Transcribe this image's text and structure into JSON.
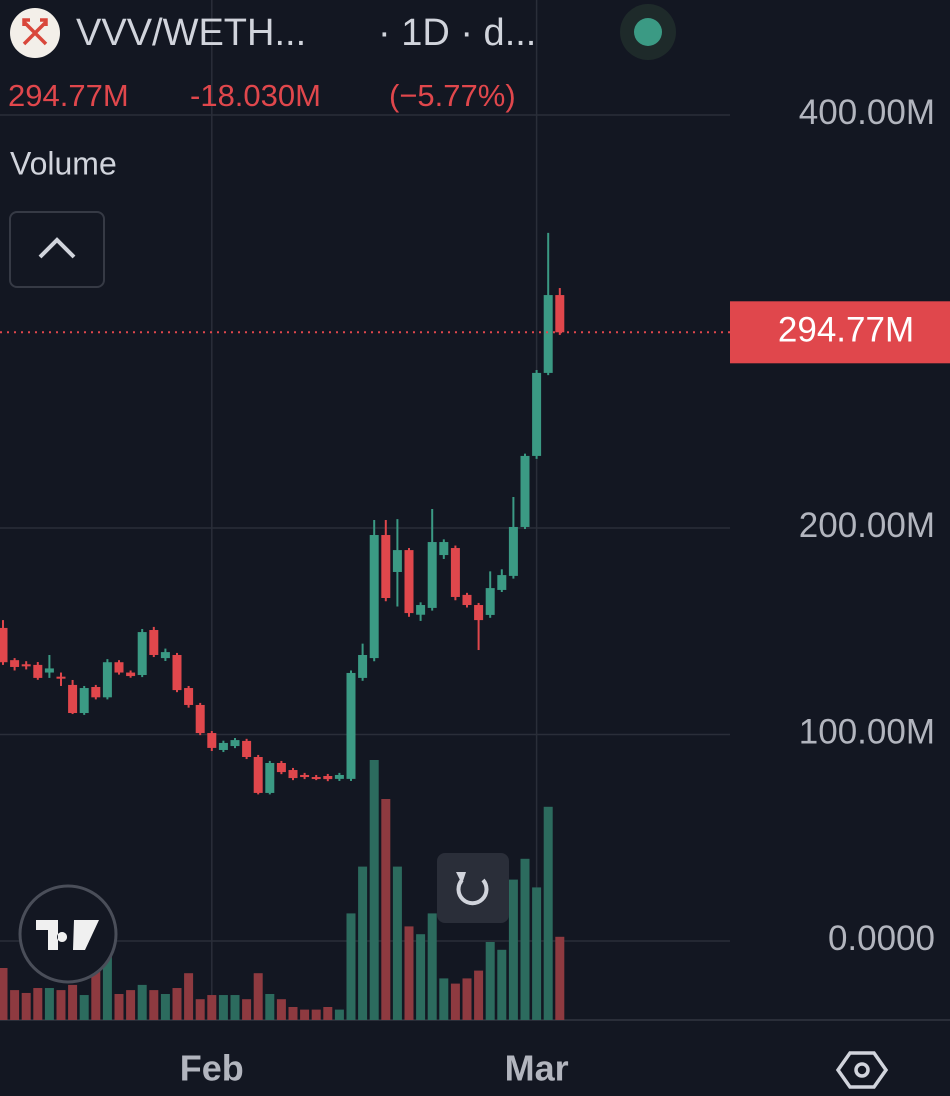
{
  "chart_data": {
    "type": "candlestick",
    "title": "VVV/WETH...",
    "subtitle": "· 1D · d...",
    "last_price_label": "294.77M",
    "change_label": "-18.030M",
    "change_pct_label": "(−5.77%)",
    "volume_label": "Volume",
    "last_price": 294.77,
    "categories": [
      null,
      null,
      null,
      null,
      null,
      null,
      null,
      null,
      null,
      null,
      null,
      null,
      null,
      null,
      null,
      null,
      null,
      null,
      "Feb",
      null,
      null,
      null,
      null,
      null,
      null,
      null,
      null,
      null,
      null,
      null,
      null,
      null,
      null,
      null,
      null,
      null,
      null,
      null,
      null,
      null,
      null,
      null,
      null,
      null,
      null,
      null,
      "Mar",
      null,
      null
    ],
    "open": [
      151.6,
      136,
      134,
      133.7,
      130,
      128,
      124,
      110.4,
      123,
      118,
      135,
      130,
      128.8,
      150.6,
      137,
      138.5,
      122.5,
      114.3,
      100.7,
      92.5,
      94.4,
      96.9,
      89.1,
      71.7,
      86.2,
      82.8,
      80.4,
      79.4,
      79.9,
      78.5,
      78.5,
      127.4,
      137,
      196.6,
      178.7,
      189.3,
      158,
      161.3,
      186.9,
      190.3,
      167.6,
      162.7,
      157.9,
      170,
      176.8,
      200.5,
      234.9,
      275.1,
      312.8
    ],
    "high": [
      155.4,
      137,
      135.5,
      135.1,
      138.5,
      130,
      126.4,
      123.5,
      124,
      136.5,
      136,
      131,
      151.1,
      152.1,
      141.6,
      139.5,
      123.5,
      115.3,
      101.7,
      97,
      98.3,
      97.9,
      90.1,
      87.2,
      87.2,
      83.8,
      81.4,
      80.4,
      80.9,
      81.4,
      131,
      144,
      203.9,
      203.9,
      204.3,
      190.3,
      164,
      209.2,
      194.5,
      191.5,
      168.6,
      163.7,
      179,
      180,
      215,
      236,
      276.5,
      342.9,
      316.2
    ],
    "low": [
      133.7,
      131,
      131.5,
      126.5,
      127.4,
      123.5,
      109.9,
      109.5,
      117,
      117,
      129,
      127.5,
      127.8,
      137.5,
      135.6,
      120.5,
      113,
      99.7,
      92,
      91.5,
      93.4,
      88.1,
      71,
      71,
      80.8,
      77.9,
      78.4,
      77.9,
      77.4,
      77.5,
      77.5,
      126,
      135.5,
      164.5,
      162,
      157,
      155,
      160,
      185,
      165,
      161.5,
      140.9,
      156.5,
      169,
      175.5,
      199.5,
      233.5,
      274,
      293.5
    ],
    "close": [
      135,
      132.7,
      133,
      127.4,
      132,
      127.5,
      110.4,
      122.5,
      118,
      135,
      130,
      128.3,
      149.6,
      138.5,
      139.9,
      121.5,
      114.3,
      100.7,
      93.5,
      95.9,
      97.3,
      89.1,
      71.7,
      86.2,
      81.8,
      78.9,
      79.4,
      78.9,
      78.4,
      80.4,
      129.8,
      138.5,
      196.6,
      166.1,
      189.3,
      158.8,
      162.7,
      193.2,
      193.2,
      166.6,
      162.7,
      155.4,
      170.9,
      177.2,
      200.5,
      234.9,
      275.1,
      312.8,
      294.77
    ],
    "volume": [
      20,
      11.5,
      10.4,
      12.3,
      12.3,
      11.5,
      13.5,
      9.6,
      21,
      28.8,
      10,
      11.5,
      13.5,
      11.5,
      10,
      12.3,
      18,
      8,
      9.6,
      9.6,
      9.6,
      8,
      18,
      10,
      8,
      5,
      4,
      4,
      5,
      4,
      41,
      59,
      100,
      85,
      59,
      36,
      33,
      41,
      16,
      14,
      16,
      19,
      30,
      27,
      54,
      62,
      51,
      82,
      32
    ],
    "volume_lim": [
      0,
      100
    ],
    "up_color": "#3b9a84",
    "down_color": "#e0474c",
    "up_volume_color": "#2c6b5e",
    "down_volume_color": "#8e3a40",
    "ylim": [
      -38.26,
      455.69
    ],
    "yticks": [
      {
        "value": 400,
        "label": "400.00M"
      },
      {
        "value": 200,
        "label": "200.00M"
      },
      {
        "value": 100,
        "label": "100.00M"
      },
      {
        "value": 0,
        "label": "0.0000"
      }
    ],
    "grid": true
  }
}
